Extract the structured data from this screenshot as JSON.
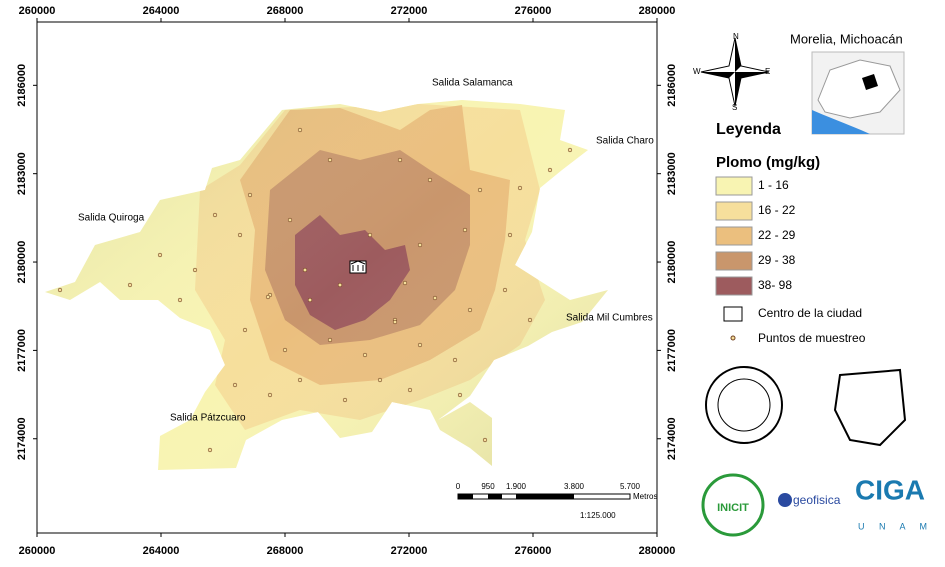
{
  "map": {
    "xlim": [
      260000,
      280000
    ],
    "ylim": [
      2170800,
      2188150
    ],
    "xticks": [
      260000,
      264000,
      268000,
      272000,
      276000,
      280000
    ],
    "yticks": [
      2174000,
      2177000,
      2180000,
      2183000,
      2186000
    ],
    "places": [
      "Salida Salamanca",
      "Salida Charo",
      "Salida Quiroga",
      "Salida Mil Cumbres",
      "Salida Pátzcuaro"
    ],
    "compass": [
      "N",
      "E",
      "S",
      "W"
    ]
  },
  "inset": {
    "title": "Morelia, Michoacán"
  },
  "legend": {
    "title": "Leyenda",
    "subtitle": "Plomo (mg/kg)",
    "classes": [
      {
        "label": "1 - 16",
        "color": "#f8f4b2"
      },
      {
        "label": "16 - 22",
        "color": "#f6df9c"
      },
      {
        "label": "22 - 29",
        "color": "#ebbf7e"
      },
      {
        "label": "29 - 38",
        "color": "#c9966c"
      },
      {
        "label": "38- 98",
        "color": "#9d5b5e"
      }
    ],
    "center": "Centro de la ciudad",
    "points": "Puntos de muestreo"
  },
  "scale_bar": {
    "ticks": [
      "0",
      "950",
      "1.900",
      "3.800",
      "5.700"
    ],
    "unit": "Metros",
    "ratio": "1:125.000"
  },
  "logos": [
    "INICIT",
    "geofisica",
    "CIGA",
    "U N A M"
  ]
}
